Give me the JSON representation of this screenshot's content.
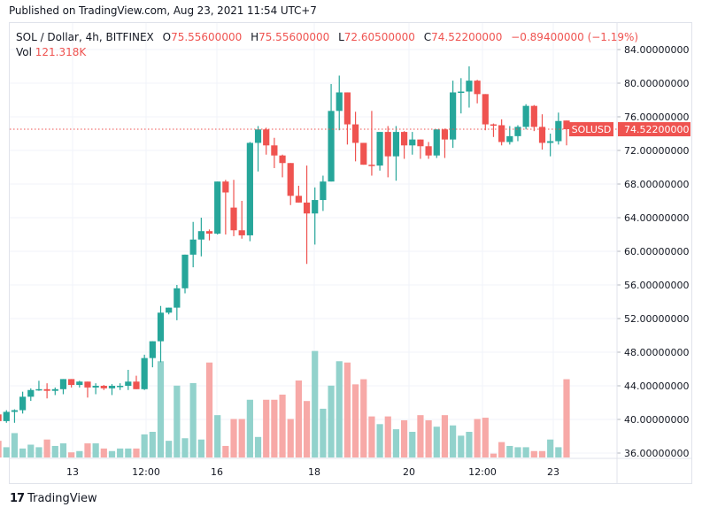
{
  "header": {
    "published": "Published on TradingView.com, Aug 23, 2021 11:54 UTC+7"
  },
  "legend": {
    "symbol": "SOL / Dollar, 4h, BITFINEX",
    "open_label": "O",
    "open": "75.55600000",
    "high_label": "H",
    "high": "75.55600000",
    "low_label": "L",
    "low": "72.60500000",
    "close_label": "C",
    "close": "74.52200000",
    "change": "−0.89400000 (−1.19%)",
    "vol_label": "Vol",
    "vol": "121.318K"
  },
  "price_tag": {
    "symbol": "SOLUSD",
    "price": "74.52200000",
    "color": "#ef5350"
  },
  "footer": {
    "logo_glyph": "17",
    "brand": "TradingView"
  },
  "colors": {
    "up": "#26a69a",
    "down": "#ef5350",
    "up_vol": "#92d2cc",
    "down_vol": "#f7a9a7",
    "grid": "#f0f3fa",
    "axis_border": "#e0e3eb"
  },
  "chart_data": {
    "type": "candlestick",
    "title": "SOL / Dollar, 4h, BITFINEX",
    "xlabel": "",
    "ylabel": "",
    "ylim": [
      35,
      86
    ],
    "y_ticks": [
      "84.00000000",
      "80.00000000",
      "76.00000000",
      "72.00000000",
      "68.00000000",
      "64.00000000",
      "60.00000000",
      "56.00000000",
      "52.00000000",
      "48.00000000",
      "44.00000000",
      "40.00000000",
      "36.00000000"
    ],
    "x_ticks": [
      {
        "label": "13",
        "x": 82
      },
      {
        "label": "12:00",
        "x": 165
      },
      {
        "label": "16",
        "x": 245
      },
      {
        "label": "18",
        "x": 355
      },
      {
        "label": "20",
        "x": 462
      },
      {
        "label": "12:00",
        "x": 545
      },
      {
        "label": "23",
        "x": 625
      }
    ],
    "last_price": 74.522,
    "candles": [
      {
        "o": 42.8,
        "h": 43.6,
        "l": 42.4,
        "c": 43.6,
        "v": 2
      },
      {
        "o": 43.6,
        "h": 43.9,
        "l": 41.6,
        "c": 42.2,
        "v": 13
      },
      {
        "o": 42.2,
        "h": 43.7,
        "l": 42.2,
        "c": 43.5,
        "v": 3
      },
      {
        "o": 43.5,
        "h": 43.6,
        "l": 40.2,
        "c": 41.3,
        "v": 10
      },
      {
        "o": 41.3,
        "h": 41.7,
        "l": 40.6,
        "c": 40.6,
        "v": 10
      },
      {
        "o": 40.6,
        "h": 41.1,
        "l": 39.4,
        "c": 39.8,
        "v": 13
      },
      {
        "o": 39.8,
        "h": 41.1,
        "l": 39.6,
        "c": 40.9,
        "v": 8
      },
      {
        "o": 40.9,
        "h": 41.2,
        "l": 39.6,
        "c": 41.1,
        "v": 19
      },
      {
        "o": 41.1,
        "h": 43.3,
        "l": 40.7,
        "c": 42.7,
        "v": 7
      },
      {
        "o": 42.7,
        "h": 43.7,
        "l": 42.2,
        "c": 43.5,
        "v": 10
      },
      {
        "o": 43.5,
        "h": 44.6,
        "l": 43.4,
        "c": 43.6,
        "v": 8
      },
      {
        "o": 43.6,
        "h": 44.3,
        "l": 42.5,
        "c": 43.4,
        "v": 14
      },
      {
        "o": 43.4,
        "h": 43.8,
        "l": 42.9,
        "c": 43.6,
        "v": 9
      },
      {
        "o": 43.6,
        "h": 44.8,
        "l": 43.0,
        "c": 44.8,
        "v": 11
      },
      {
        "o": 44.8,
        "h": 44.8,
        "l": 43.8,
        "c": 44.1,
        "v": 4
      },
      {
        "o": 44.1,
        "h": 44.6,
        "l": 43.8,
        "c": 44.5,
        "v": 5
      },
      {
        "o": 44.5,
        "h": 44.5,
        "l": 42.6,
        "c": 43.8,
        "v": 11
      },
      {
        "o": 43.8,
        "h": 44.3,
        "l": 43.0,
        "c": 44.0,
        "v": 11
      },
      {
        "o": 44.0,
        "h": 44.1,
        "l": 43.5,
        "c": 43.7,
        "v": 7
      },
      {
        "o": 43.7,
        "h": 44.2,
        "l": 42.9,
        "c": 44.0,
        "v": 5
      },
      {
        "o": 44.0,
        "h": 44.3,
        "l": 43.5,
        "c": 44.0,
        "v": 7
      },
      {
        "o": 44.0,
        "h": 45.9,
        "l": 43.5,
        "c": 44.5,
        "v": 7
      },
      {
        "o": 44.5,
        "h": 45.2,
        "l": 43.8,
        "c": 43.6,
        "v": 7
      },
      {
        "o": 43.6,
        "h": 47.7,
        "l": 43.5,
        "c": 47.3,
        "v": 18
      },
      {
        "o": 47.3,
        "h": 48.8,
        "l": 46.2,
        "c": 49.3,
        "v": 20
      },
      {
        "o": 49.3,
        "h": 53.5,
        "l": 46.8,
        "c": 52.7,
        "v": 75
      },
      {
        "o": 52.7,
        "h": 53.3,
        "l": 52.5,
        "c": 53.3,
        "v": 13
      },
      {
        "o": 53.3,
        "h": 56.0,
        "l": 51.8,
        "c": 55.6,
        "v": 56
      },
      {
        "o": 55.6,
        "h": 58.3,
        "l": 55.0,
        "c": 59.6,
        "v": 15
      },
      {
        "o": 59.6,
        "h": 63.5,
        "l": 58.1,
        "c": 61.4,
        "v": 58
      },
      {
        "o": 61.4,
        "h": 64.0,
        "l": 59.4,
        "c": 62.4,
        "v": 14
      },
      {
        "o": 62.4,
        "h": 62.6,
        "l": 61.3,
        "c": 62.1,
        "v": 74
      },
      {
        "o": 62.1,
        "h": 67.1,
        "l": 62.0,
        "c": 68.3,
        "v": 33
      },
      {
        "o": 68.3,
        "h": 68.5,
        "l": 62.0,
        "c": 67.0,
        "v": 9
      },
      {
        "o": 65.2,
        "h": 68.5,
        "l": 61.8,
        "c": 62.5,
        "v": 30
      },
      {
        "o": 62.5,
        "h": 66.0,
        "l": 61.5,
        "c": 61.9,
        "v": 30
      },
      {
        "o": 61.9,
        "h": 73.0,
        "l": 61.2,
        "c": 72.9,
        "v": 45
      },
      {
        "o": 72.9,
        "h": 74.9,
        "l": 69.5,
        "c": 74.5,
        "v": 16
      },
      {
        "o": 74.5,
        "h": 74.7,
        "l": 71.5,
        "c": 72.6,
        "v": 45
      },
      {
        "o": 72.6,
        "h": 73.5,
        "l": 69.9,
        "c": 71.4,
        "v": 45
      },
      {
        "o": 71.4,
        "h": 71.5,
        "l": 68.8,
        "c": 70.5,
        "v": 49
      },
      {
        "o": 70.5,
        "h": 70.5,
        "l": 65.5,
        "c": 66.6,
        "v": 30
      },
      {
        "o": 66.6,
        "h": 67.8,
        "l": 65.9,
        "c": 65.8,
        "v": 60
      },
      {
        "o": 65.8,
        "h": 70.2,
        "l": 58.5,
        "c": 64.5,
        "v": 44
      },
      {
        "o": 64.5,
        "h": 67.6,
        "l": 60.8,
        "c": 66.1,
        "v": 83
      },
      {
        "o": 66.1,
        "h": 69.0,
        "l": 64.8,
        "c": 68.3,
        "v": 38
      },
      {
        "o": 68.3,
        "h": 79.9,
        "l": 68.4,
        "c": 76.7,
        "v": 56
      },
      {
        "o": 76.7,
        "h": 80.9,
        "l": 74.4,
        "c": 78.9,
        "v": 75
      },
      {
        "o": 78.9,
        "h": 78.3,
        "l": 72.7,
        "c": 75.1,
        "v": 74
      },
      {
        "o": 75.1,
        "h": 76.6,
        "l": 70.7,
        "c": 72.9,
        "v": 57
      },
      {
        "o": 72.9,
        "h": 72.8,
        "l": 71.7,
        "c": 70.3,
        "v": 61
      },
      {
        "o": 70.3,
        "h": 76.7,
        "l": 69.0,
        "c": 70.2,
        "v": 32
      },
      {
        "o": 70.2,
        "h": 73.4,
        "l": 69.6,
        "c": 74.2,
        "v": 26
      },
      {
        "o": 74.2,
        "h": 74.9,
        "l": 68.8,
        "c": 71.3,
        "v": 32
      },
      {
        "o": 71.3,
        "h": 74.9,
        "l": 68.4,
        "c": 74.2,
        "v": 22
      },
      {
        "o": 74.2,
        "h": 74.3,
        "l": 71.0,
        "c": 72.6,
        "v": 29
      },
      {
        "o": 72.6,
        "h": 74.2,
        "l": 71.5,
        "c": 73.3,
        "v": 20
      },
      {
        "o": 73.3,
        "h": 72.5,
        "l": 71.0,
        "c": 72.5,
        "v": 33
      },
      {
        "o": 72.5,
        "h": 73.0,
        "l": 71.0,
        "c": 71.4,
        "v": 29
      },
      {
        "o": 71.4,
        "h": 74.2,
        "l": 71.1,
        "c": 74.5,
        "v": 24
      },
      {
        "o": 74.5,
        "h": 74.6,
        "l": 71.1,
        "c": 73.3,
        "v": 33
      },
      {
        "o": 73.3,
        "h": 80.3,
        "l": 72.3,
        "c": 78.9,
        "v": 25
      },
      {
        "o": 78.9,
        "h": 80.6,
        "l": 76.4,
        "c": 79.0,
        "v": 17
      },
      {
        "o": 79.0,
        "h": 82.0,
        "l": 77.1,
        "c": 80.3,
        "v": 20
      },
      {
        "o": 80.3,
        "h": 80.4,
        "l": 77.6,
        "c": 78.7,
        "v": 30
      },
      {
        "o": 78.7,
        "h": 78.0,
        "l": 74.4,
        "c": 75.1,
        "v": 31
      },
      {
        "o": 75.1,
        "h": 75.2,
        "l": 73.6,
        "c": 75.0,
        "v": 3
      },
      {
        "o": 75.0,
        "h": 75.7,
        "l": 72.6,
        "c": 73.0,
        "v": 12
      },
      {
        "o": 73.0,
        "h": 74.9,
        "l": 72.7,
        "c": 73.7,
        "v": 9
      },
      {
        "o": 73.7,
        "h": 75.0,
        "l": 73.1,
        "c": 74.8,
        "v": 8
      },
      {
        "o": 74.8,
        "h": 77.5,
        "l": 74.5,
        "c": 77.3,
        "v": 8
      },
      {
        "o": 77.3,
        "h": 77.4,
        "l": 74.3,
        "c": 74.8,
        "v": 5
      },
      {
        "o": 74.8,
        "h": 76.3,
        "l": 72.1,
        "c": 72.9,
        "v": 5
      },
      {
        "o": 72.9,
        "h": 74.0,
        "l": 71.3,
        "c": 73.1,
        "v": 14
      },
      {
        "o": 73.1,
        "h": 76.5,
        "l": 72.7,
        "c": 75.5,
        "v": 8
      },
      {
        "o": 75.556,
        "h": 75.556,
        "l": 72.605,
        "c": 74.522,
        "v": 61
      }
    ]
  }
}
